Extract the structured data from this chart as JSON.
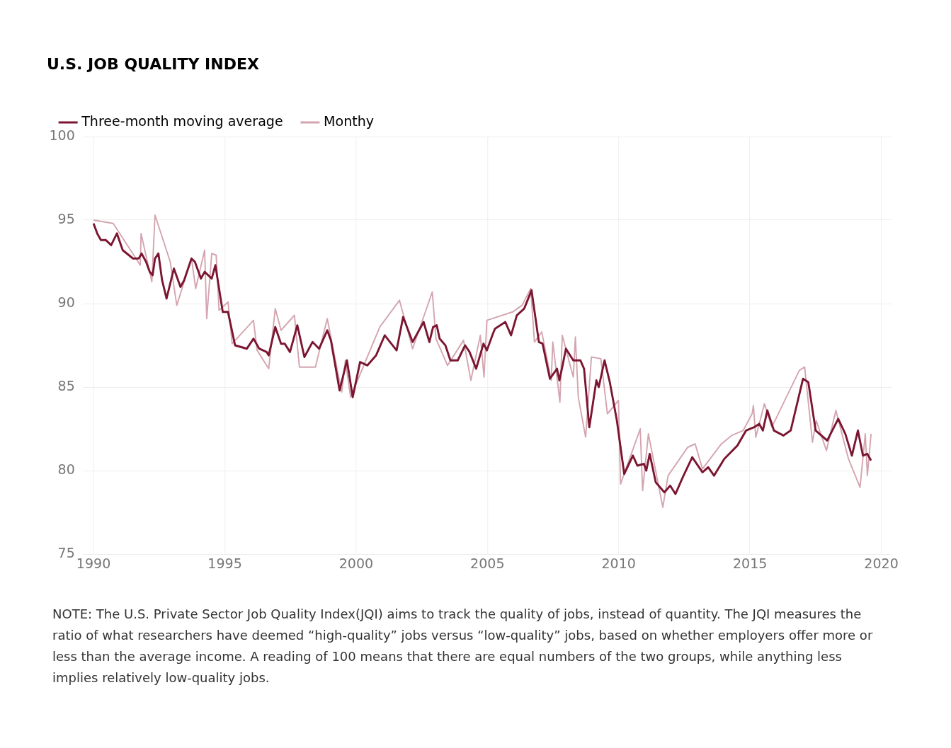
{
  "chart_data": {
    "type": "line",
    "title": "U.S. JOB QUALITY INDEX",
    "xlim": [
      1989.6,
      2020.4
    ],
    "xticks": [
      1990,
      1995,
      2000,
      2005,
      2010,
      2015,
      2020
    ],
    "ylim": [
      75,
      100
    ],
    "yticks": [
      75,
      80,
      85,
      90,
      95,
      100
    ],
    "grid": true,
    "legend": "top left",
    "marker": "none",
    "series": [
      {
        "name": "Three-month moving average",
        "color": "#7b1530",
        "x": [
          1990.0,
          1990.14,
          1990.28,
          1990.47,
          1990.67,
          1990.89,
          1991.11,
          1991.5,
          1991.72,
          1991.83,
          1992.0,
          1992.14,
          1992.25,
          1992.34,
          1992.47,
          1992.61,
          1992.78,
          1993.06,
          1993.31,
          1993.45,
          1993.73,
          1993.86,
          1994.09,
          1994.23,
          1994.5,
          1994.64,
          1994.92,
          1995.12,
          1995.39,
          1995.84,
          1996.09,
          1996.31,
          1996.59,
          1996.67,
          1996.92,
          1997.14,
          1997.28,
          1997.48,
          1997.76,
          1998.03,
          1998.34,
          1998.59,
          1998.9,
          1999.04,
          1999.37,
          1999.65,
          1999.87,
          2000.15,
          2000.43,
          2000.76,
          2001.09,
          2001.54,
          2001.79,
          2002.15,
          2002.57,
          2002.79,
          2002.93,
          2003.07,
          2003.18,
          2003.4,
          2003.59,
          2003.87,
          2004.15,
          2004.32,
          2004.57,
          2004.85,
          2004.98,
          2005.21,
          2005.29,
          2005.68,
          2005.9,
          2006.12,
          2006.4,
          2006.68,
          2006.96,
          2007.1,
          2007.38,
          2007.65,
          2007.74,
          2007.85,
          2007.99,
          2008.27,
          2008.54,
          2008.68,
          2008.88,
          2009.15,
          2009.24,
          2009.46,
          2009.66,
          2009.93,
          2010.21,
          2010.54,
          2010.71,
          2010.96,
          2011.05,
          2011.18,
          2011.41,
          2011.74,
          2011.96,
          2012.16,
          2012.44,
          2012.8,
          2013.19,
          2013.41,
          2013.63,
          2014.02,
          2014.52,
          2014.85,
          2015.16,
          2015.35,
          2015.49,
          2015.66,
          2015.91,
          2016.27,
          2016.55,
          2017.02,
          2017.22,
          2017.5,
          2017.94,
          2018.36,
          2018.63,
          2018.88,
          2019.11,
          2019.3,
          2019.47,
          2019.61
        ],
        "values": [
          94.8,
          94.2,
          93.8,
          93.8,
          93.5,
          94.2,
          93.2,
          92.7,
          92.7,
          93.0,
          92.5,
          91.9,
          91.7,
          92.7,
          93.0,
          91.4,
          90.3,
          92.1,
          91.0,
          91.4,
          92.7,
          92.5,
          91.5,
          91.9,
          91.5,
          92.3,
          89.5,
          89.5,
          87.5,
          87.3,
          87.9,
          87.3,
          87.1,
          86.9,
          88.6,
          87.6,
          87.6,
          87.1,
          88.7,
          86.8,
          87.7,
          87.3,
          88.4,
          87.8,
          84.8,
          86.6,
          84.4,
          86.5,
          86.3,
          86.9,
          88.1,
          87.2,
          89.2,
          87.7,
          88.9,
          87.7,
          88.6,
          88.7,
          87.9,
          87.5,
          86.6,
          86.6,
          87.5,
          87.1,
          86.1,
          87.6,
          87.2,
          88.2,
          88.5,
          88.9,
          88.1,
          89.3,
          89.7,
          90.8,
          87.7,
          87.6,
          85.5,
          86.1,
          85.4,
          86.2,
          87.3,
          86.6,
          86.6,
          86.1,
          82.6,
          85.4,
          85.0,
          86.6,
          85.3,
          83.0,
          79.8,
          80.9,
          80.3,
          80.4,
          80.0,
          81.0,
          79.3,
          78.7,
          79.1,
          78.6,
          79.6,
          80.8,
          79.9,
          80.2,
          79.7,
          80.7,
          81.5,
          82.4,
          82.6,
          82.8,
          82.4,
          83.6,
          82.4,
          82.1,
          82.4,
          85.5,
          85.3,
          82.4,
          81.8,
          83.1,
          82.2,
          80.9,
          82.4,
          80.9,
          81.0,
          80.6
        ]
      },
      {
        "name": "Monthy",
        "color": "#d4a5b0",
        "x": [
          1990.0,
          1990.75,
          1991.78,
          1991.81,
          1992.22,
          1992.34,
          1992.92,
          1993.17,
          1993.73,
          1993.89,
          1994.23,
          1994.31,
          1994.5,
          1994.67,
          1994.78,
          1995.12,
          1995.28,
          1996.09,
          1996.23,
          1996.67,
          1996.92,
          1997.14,
          1997.65,
          1997.84,
          1998.45,
          1998.9,
          1999.45,
          1999.59,
          1999.79,
          2000.9,
          2001.65,
          2002.15,
          2002.9,
          2003.04,
          2003.48,
          2004.09,
          2004.37,
          2004.73,
          2004.87,
          2004.98,
          2005.96,
          2006.32,
          2006.65,
          2006.79,
          2007.07,
          2007.43,
          2007.49,
          2007.76,
          2007.85,
          2008.27,
          2008.35,
          2008.46,
          2008.74,
          2008.96,
          2009.32,
          2009.57,
          2009.99,
          2010.07,
          2010.82,
          2010.91,
          2011.13,
          2011.68,
          2011.88,
          2012.63,
          2012.91,
          2013.19,
          2013.91,
          2014.3,
          2014.74,
          2015.08,
          2015.13,
          2015.22,
          2015.55,
          2015.83,
          2016.88,
          2017.08,
          2017.38,
          2017.52,
          2017.91,
          2018.27,
          2018.75,
          2019.19,
          2019.39,
          2019.47,
          2019.61
        ],
        "values": [
          95.0,
          94.8,
          92.3,
          94.2,
          91.3,
          95.3,
          92.5,
          89.9,
          92.7,
          90.9,
          93.2,
          89.1,
          93.0,
          92.9,
          89.6,
          90.1,
          87.6,
          89.0,
          87.2,
          86.1,
          89.7,
          88.4,
          89.3,
          86.2,
          86.2,
          89.1,
          84.7,
          86.6,
          84.4,
          88.6,
          90.2,
          87.3,
          90.7,
          87.9,
          86.3,
          87.8,
          85.4,
          88.1,
          85.6,
          89.0,
          89.5,
          89.9,
          90.9,
          87.7,
          88.3,
          85.4,
          87.7,
          84.1,
          88.1,
          85.6,
          88.0,
          84.4,
          82.0,
          86.8,
          86.7,
          83.4,
          84.2,
          79.2,
          82.5,
          78.8,
          82.2,
          77.8,
          79.7,
          81.4,
          81.6,
          80.1,
          81.6,
          82.1,
          82.4,
          83.4,
          83.9,
          82.0,
          84.0,
          82.6,
          86.0,
          86.2,
          81.7,
          83.0,
          81.2,
          83.6,
          80.7,
          79.0,
          82.2,
          79.7,
          82.2
        ]
      }
    ],
    "annotations": [
      "NOTE: The U.S. Private Sector Job Quality Index(JQI) aims to track the quality of jobs, instead of quantity. The JQI measures the ratio of what researchers have deemed “high-quality” jobs versus “low-quality” jobs, based on whether employers offer more or less than the average income. A reading of 100 means that there are equal numbers of the two groups, while anything less implies relatively low-quality jobs."
    ]
  }
}
